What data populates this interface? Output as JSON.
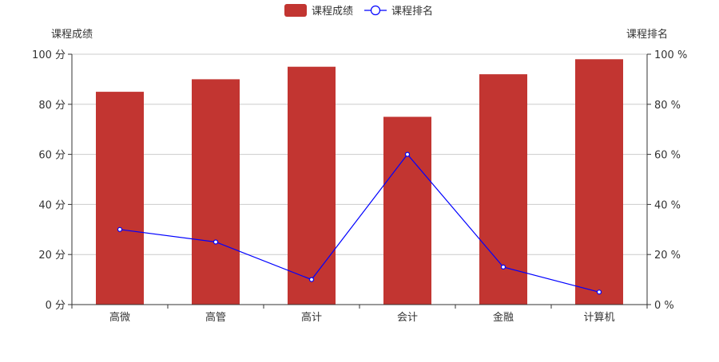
{
  "chart_data": {
    "type": "bar",
    "categories": [
      "高微",
      "高管",
      "高计",
      "会计",
      "金融",
      "计算机"
    ],
    "series": [
      {
        "name": "课程成绩",
        "kind": "bar",
        "axis": "left",
        "values": [
          85,
          90,
          95,
          75,
          92,
          98
        ]
      },
      {
        "name": "课程排名",
        "kind": "line",
        "axis": "right",
        "values": [
          30,
          25,
          10,
          60,
          15,
          5
        ]
      }
    ],
    "yAxisLeft": {
      "name": "课程成绩",
      "min": 0,
      "max": 100,
      "interval": 20,
      "unit": "分"
    },
    "yAxisRight": {
      "name": "课程排名",
      "min": 0,
      "max": 100,
      "interval": 20,
      "unit": "%"
    },
    "legend": {
      "position": "top-center"
    },
    "grid": true,
    "colors": {
      "bar": "#c23531",
      "line": "#0000ff",
      "axis": "#333333",
      "grid": "#cccccc",
      "text": "#333333"
    }
  }
}
